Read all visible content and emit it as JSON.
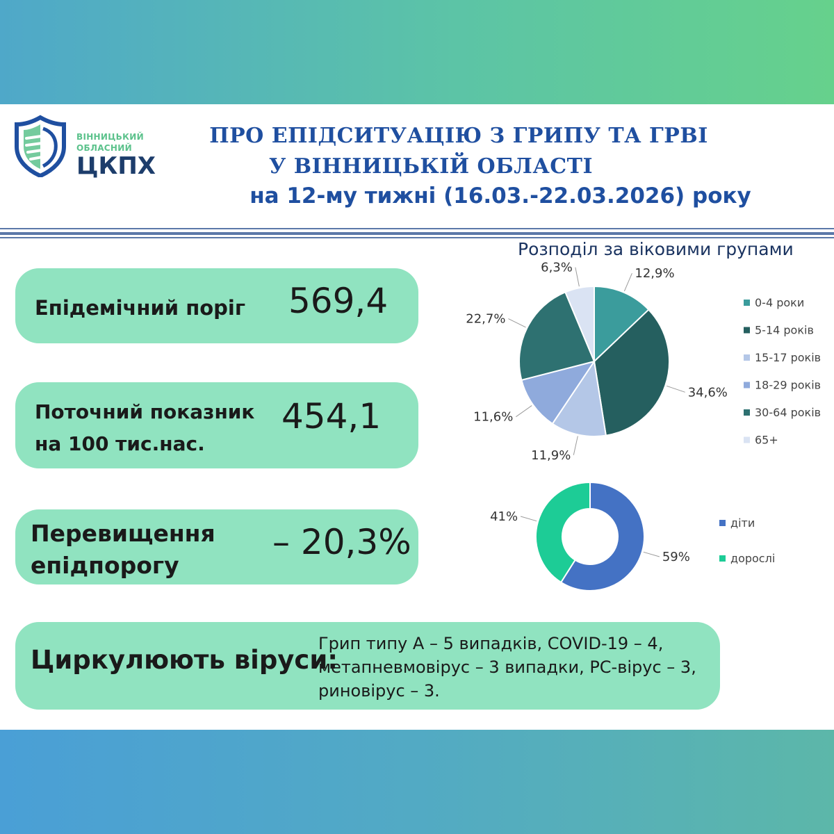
{
  "logo": {
    "line1": "ВІННИЦЬКИЙ",
    "line2": "ОБЛАСНИЙ",
    "name": "ЦКПХ"
  },
  "header": {
    "title_line1": "ПРО ЕПІДСИТУАЦІЮ З ГРИПУ ТА ГРВІ",
    "title_line2": "У ВІННИЦЬКІЙ ОБЛАСТІ",
    "title_line3": "на 12-му тижні (16.03.-22.03.2026) року"
  },
  "stats": {
    "threshold_label": "Епідемічний поріг",
    "threshold_value": "569,4",
    "current_label_line1": "Поточний показник",
    "current_label_line2": "на 100 тис.нас.",
    "current_value": "454,1",
    "excess_label_line1": "Перевищення",
    "excess_label_line2": "епідпорогу",
    "excess_value": "– 20,3%",
    "viruses_label": "Циркулюють віруси:",
    "viruses_text": "Грип типу А – 5 випадків, COVID-19 – 4,\nметапневмовірус – 3 випадки, РС-вірус – 3,\nриновірус – 3."
  },
  "colors": {
    "pill_bg": "#90e3c0",
    "title_blue": "#1f4fa0"
  },
  "chart_data": [
    {
      "type": "pie",
      "title": "Розподіл за віковими групами",
      "categories": [
        "0-4 роки",
        "5-14 років",
        "15-17 років",
        "18-29 років",
        "30-64 років",
        "65+"
      ],
      "values": [
        12.9,
        34.6,
        11.9,
        11.6,
        22.7,
        6.3
      ],
      "labels": [
        "12,9%",
        "34,6%",
        "11,9%",
        "11,6%",
        "22,7%",
        "6,3%"
      ],
      "colors": [
        "#3b9c9c",
        "#255f5f",
        "#b4c7e7",
        "#8faadc",
        "#2e7171",
        "#dae3f3"
      ],
      "legend": "right"
    },
    {
      "type": "pie",
      "title": "",
      "donut": true,
      "categories": [
        "діти",
        "дорослі"
      ],
      "values": [
        59,
        41
      ],
      "labels": [
        "59%",
        "41%"
      ],
      "colors": [
        "#4472c4",
        "#1dcc96"
      ],
      "legend": "right"
    }
  ]
}
